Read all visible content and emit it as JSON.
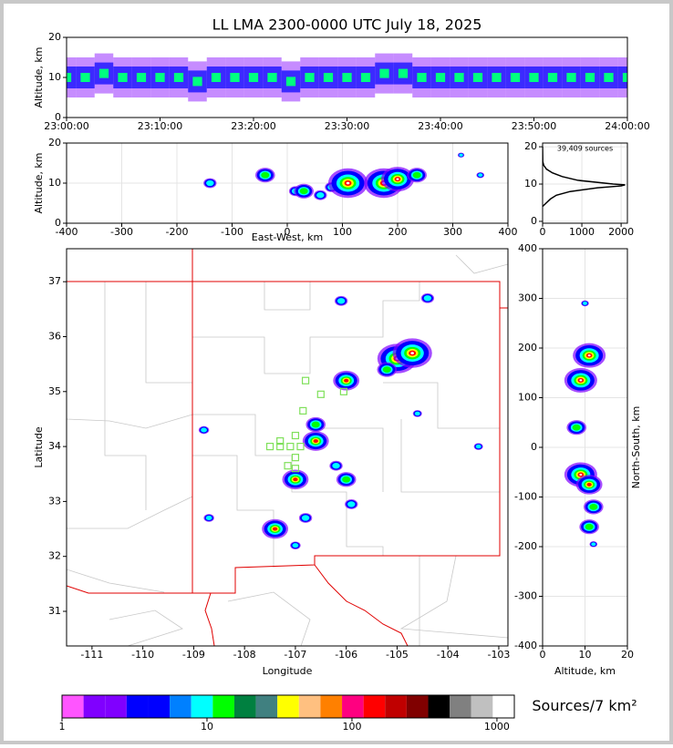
{
  "chart_data": [
    {
      "type": "strip",
      "title": "LL LMA 2300-0000 UTC July 18, 2025",
      "ylabel": "Altitude, km",
      "xlim": [
        0,
        60
      ],
      "xticks": [
        {
          "value": 0,
          "label": "23:00:00"
        },
        {
          "value": 10,
          "label": "23:10:00"
        },
        {
          "value": 20,
          "label": "23:20:00"
        },
        {
          "value": 30,
          "label": "23:30:00"
        },
        {
          "value": 40,
          "label": "23:40:00"
        },
        {
          "value": 50,
          "label": "23:50:00"
        },
        {
          "value": 60,
          "label": "24:00:00"
        }
      ],
      "ylim": [
        0,
        20
      ],
      "yticks": [
        0,
        10,
        20
      ],
      "x": [
        0,
        2,
        4,
        6,
        8,
        10,
        12,
        14,
        16,
        18,
        20,
        22,
        24,
        26,
        28,
        30,
        32,
        34,
        36,
        38,
        40,
        42,
        44,
        46,
        48,
        50,
        52,
        54,
        56,
        58,
        60
      ],
      "values": [
        10,
        10,
        11,
        10,
        10,
        10,
        10,
        9,
        10,
        10,
        10,
        10,
        9,
        10,
        10,
        10,
        10,
        11,
        11,
        10,
        10,
        10,
        10,
        10,
        10,
        10,
        10,
        10,
        10,
        10,
        10
      ]
    },
    {
      "type": "scatter",
      "xlabel": "East-West, km",
      "ylabel": "Altitude, km",
      "xlim": [
        -400,
        400
      ],
      "xticks": [
        -400,
        -300,
        -200,
        -100,
        0,
        100,
        200,
        300,
        400
      ],
      "ylim": [
        0,
        20
      ],
      "yticks": [
        0,
        10,
        20
      ],
      "grid": true,
      "x": [
        -140,
        -40,
        15,
        30,
        60,
        80,
        110,
        175,
        200,
        235,
        350,
        315
      ],
      "values": [
        10,
        12,
        8,
        8,
        7,
        9,
        10,
        10,
        11,
        12,
        12,
        17
      ],
      "sizes": [
        1,
        1.5,
        1,
        1.5,
        1,
        1,
        3,
        3,
        2.5,
        1.5,
        0.6,
        0.5
      ]
    },
    {
      "type": "profile",
      "annotation": "39,409 sources",
      "xlim": [
        0,
        2160
      ],
      "xticks": [
        0,
        1000,
        2000
      ],
      "ylim": [
        -0.5,
        21
      ],
      "yticks": [
        0,
        10,
        20
      ],
      "grid": true,
      "x": [
        0,
        100,
        200,
        350,
        700,
        1400,
        2000,
        2100,
        1800,
        900,
        500,
        250,
        100,
        30,
        5,
        0
      ],
      "values": [
        4,
        5,
        6,
        7,
        8,
        9,
        9.5,
        9.8,
        10,
        11,
        12,
        13,
        14,
        15,
        16,
        20
      ]
    },
    {
      "type": "map",
      "xlabel": "Longitude",
      "ylabel": "Latitude",
      "xlim": [
        -111.5,
        -102.82
      ],
      "xticks": [
        -111,
        -110,
        -109,
        -108,
        -107,
        -106,
        -105,
        -104,
        -103
      ],
      "ylim": [
        30.37,
        37.6
      ],
      "yticks": [
        31,
        32,
        33,
        34,
        35,
        36,
        37
      ],
      "x": [
        -105.0,
        -104.7,
        -106.0,
        -106.1,
        -104.4,
        -106.6,
        -106.6,
        -107.0,
        -106.0,
        -105.9,
        -107.4,
        -106.8,
        -107.0,
        -108.7,
        -108.8,
        -104.6,
        -103.4,
        -106.2,
        -105.2
      ],
      "values": [
        35.6,
        35.7,
        35.2,
        36.65,
        36.7,
        34.1,
        34.4,
        33.4,
        33.4,
        32.95,
        32.5,
        32.7,
        32.2,
        32.7,
        34.3,
        34.6,
        34.0,
        33.65,
        35.4
      ],
      "sizes": [
        3,
        3,
        2,
        1,
        1,
        2,
        1.5,
        2,
        1.5,
        1,
        2,
        1,
        0.8,
        0.8,
        0.8,
        0.7,
        0.7,
        1,
        1.5
      ],
      "stations": {
        "color": "#7fe05a",
        "x": [
          -106.8,
          -106.5,
          -106.05,
          -106.85,
          -107.0,
          -107.1,
          -107.3,
          -107.5,
          -106.9,
          -107.3,
          -107.0,
          -107.0,
          -107.15
        ],
        "values": [
          35.2,
          34.95,
          35.0,
          34.65,
          34.2,
          34.0,
          34.0,
          34.0,
          34.0,
          34.1,
          33.8,
          33.6,
          33.65
        ]
      }
    },
    {
      "type": "scatter",
      "xlabel": "Altitude, km",
      "ylabel": "North-South, km",
      "yaxis_side": "right",
      "xlim": [
        0,
        20
      ],
      "xticks": [
        0,
        10,
        20
      ],
      "ylim": [
        -400,
        400
      ],
      "yticks": [
        -400,
        -300,
        -200,
        -100,
        0,
        100,
        200,
        300,
        400
      ],
      "grid": true,
      "x": [
        10,
        11,
        9,
        8,
        9,
        11,
        12,
        11,
        12
      ],
      "values": [
        290,
        185,
        135,
        40,
        -55,
        -75,
        -120,
        -160,
        -195
      ],
      "sizes": [
        0.6,
        2.5,
        2.5,
        1.5,
        2.5,
        2,
        1.5,
        1.5,
        0.6
      ]
    },
    {
      "type": "colorbar",
      "label": "Sources/7 km²",
      "log": true,
      "xlim": [
        1,
        1318
      ],
      "xticks": [
        1,
        10,
        100,
        1000
      ],
      "colors": [
        "#ff55ff",
        "#8000ff",
        "#8000ff",
        "#0000ff",
        "#0000ff",
        "#0080ff",
        "#00ffff",
        "#00ff00",
        "#008040",
        "#408080",
        "#ffff00",
        "#ffc080",
        "#ff8000",
        "#ff0080",
        "#ff0000",
        "#c00000",
        "#800000",
        "#000000",
        "#808080",
        "#c0c0c0",
        "#ffffff"
      ]
    }
  ]
}
